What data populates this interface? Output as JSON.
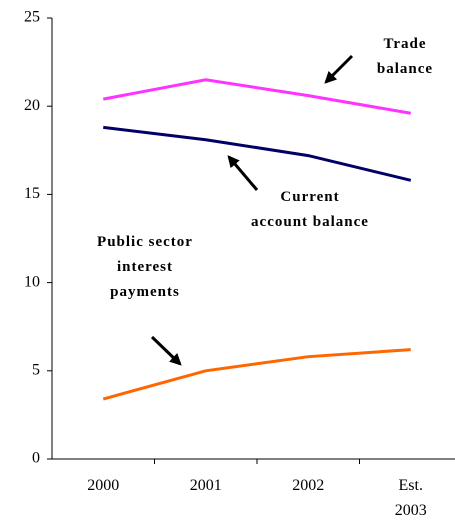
{
  "chart_data": {
    "type": "line",
    "categories": [
      "2000",
      "2001",
      "2002",
      "Est. 2003"
    ],
    "series": [
      {
        "name": "Trade balance",
        "color": "#ff33ff",
        "values": [
          20.4,
          21.5,
          20.6,
          19.6
        ]
      },
      {
        "name": "Current account balance",
        "color": "#000066",
        "values": [
          18.8,
          18.1,
          17.2,
          15.8
        ]
      },
      {
        "name": "Public sector interest payments",
        "color": "#ff6600",
        "values": [
          3.4,
          5.0,
          5.8,
          6.2
        ]
      }
    ],
    "ylim": [
      0,
      25
    ],
    "yticks": [
      0,
      5,
      10,
      15,
      20,
      25
    ],
    "grid": false
  }
}
